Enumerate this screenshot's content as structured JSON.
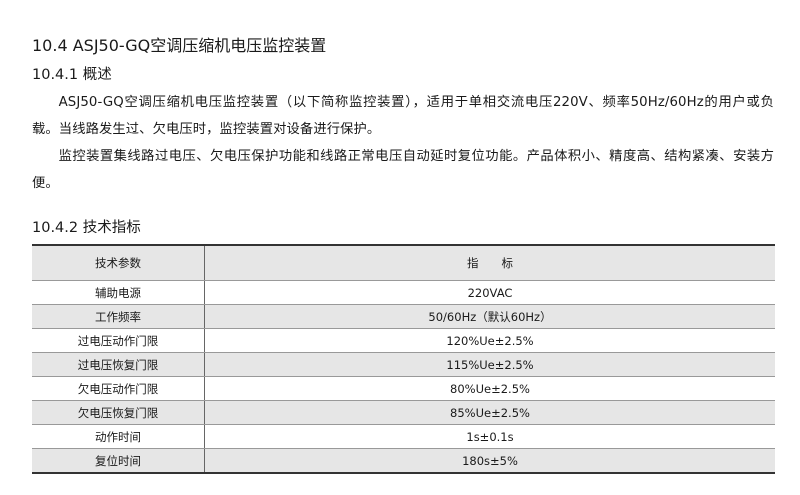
{
  "section_title": "10.4 ASJ50-GQ空调压缩机电压监控装置",
  "overview": {
    "heading": "10.4.1 概述",
    "paragraphs": [
      "ASJ50-GQ空调压缩机电压监控装置（以下简称监控装置），适用于单相交流电压220V、频率50Hz/60Hz的用户或负载。当线路发生过、欠电压时，监控装置对设备进行保护。",
      "监控装置集线路过电压、欠电压保护功能和线路正常电压自动延时复位功能。产品体积小、精度高、结构紧凑、安装方便。"
    ]
  },
  "specs": {
    "heading": "10.4.2 技术指标",
    "columns": [
      "技术参数",
      "指　　标"
    ],
    "rows": [
      [
        "辅助电源",
        "220VAC"
      ],
      [
        "工作频率",
        "50/60Hz（默认60Hz）"
      ],
      [
        "过电压动作门限",
        "120%Ue±2.5%"
      ],
      [
        "过电压恢复门限",
        "115%Ue±2.5%"
      ],
      [
        "欠电压动作门限",
        "80%Ue±2.5%"
      ],
      [
        "欠电压恢复门限",
        "85%Ue±2.5%"
      ],
      [
        "动作时间",
        "1s±0.1s"
      ],
      [
        "复位时间",
        "180s±5%"
      ]
    ]
  }
}
